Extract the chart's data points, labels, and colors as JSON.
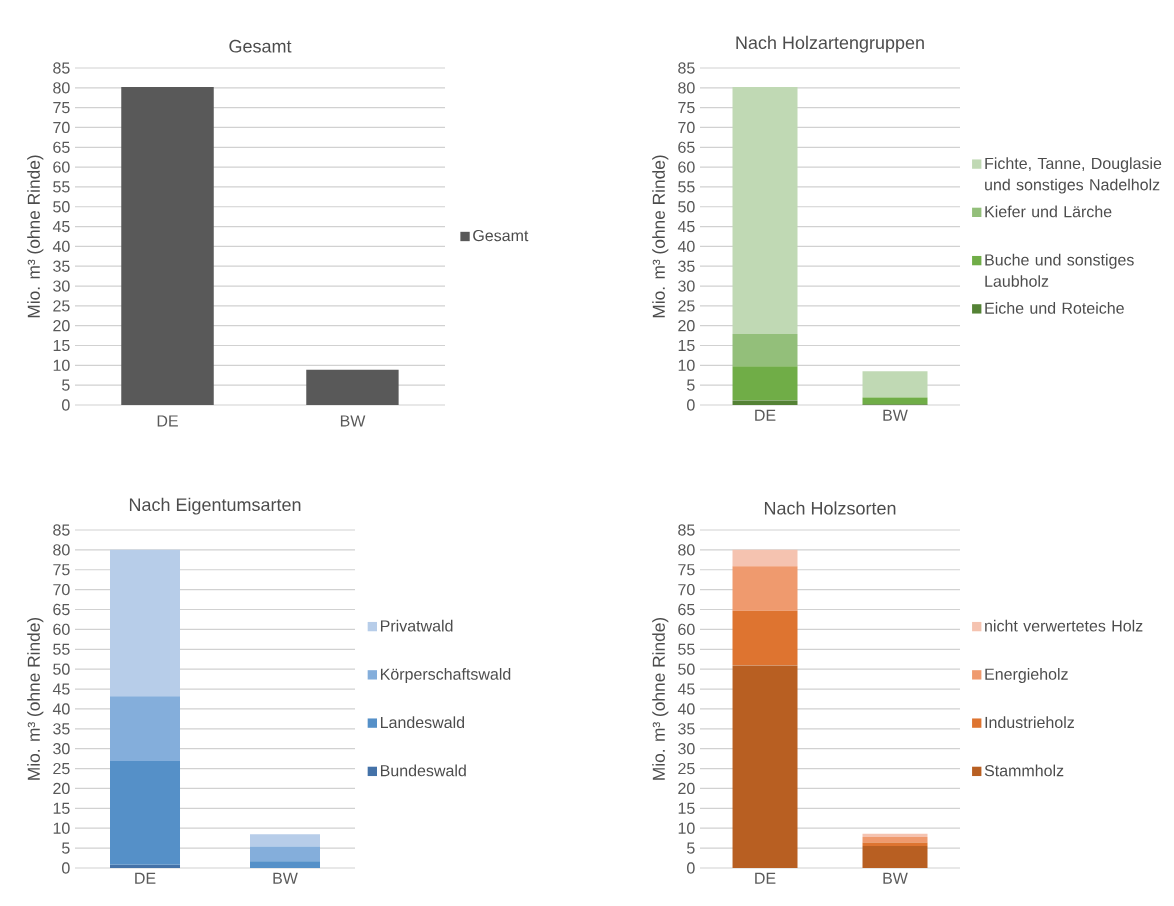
{
  "chart_data": [
    {
      "type": "bar",
      "title": "Gesamt",
      "ylabel": "Mio. m³ (ohne Rinde)",
      "categories": [
        "DE",
        "BW"
      ],
      "series": [
        {
          "name": "Gesamt",
          "color": "#595959",
          "values": [
            80.2,
            8.9
          ]
        }
      ],
      "ylim": [
        0,
        85
      ],
      "yticks": [
        0,
        5,
        10,
        15,
        20,
        25,
        30,
        35,
        40,
        45,
        50,
        55,
        60,
        65,
        70,
        75,
        80,
        85
      ],
      "grid": "y",
      "legend": "right"
    },
    {
      "type": "bar",
      "title": "Nach Holzartengruppen",
      "ylabel": "Mio. m³ (ohne Rinde)",
      "categories": [
        "DE",
        "BW"
      ],
      "stacked": true,
      "series": [
        {
          "name": "Eiche und Roteiche",
          "color": "#548235",
          "values": [
            1.2,
            0.2
          ]
        },
        {
          "name": "Buche und sonstiges Laubholz",
          "color": "#70ad47",
          "values": [
            8.6,
            1.7
          ]
        },
        {
          "name": "Kiefer und Lärche",
          "color": "#93bf7a",
          "values": [
            8.1,
            null
          ]
        },
        {
          "name": "Fichte, Tanne, Douglasie und sonstiges Nadelholz",
          "color": "#c0d9b4",
          "values": [
            62.3,
            6.6
          ]
        }
      ],
      "ylim": [
        0,
        85
      ],
      "yticks": [
        0,
        5,
        10,
        15,
        20,
        25,
        30,
        35,
        40,
        45,
        50,
        55,
        60,
        65,
        70,
        75,
        80,
        85
      ],
      "grid": "y",
      "legend": "right"
    },
    {
      "type": "bar",
      "title": "Nach Eigentumsarten",
      "ylabel": "Mio. m³ (ohne Rinde)",
      "categories": [
        "DE",
        "BW"
      ],
      "stacked": true,
      "series": [
        {
          "name": "Bundeswald",
          "color": "#4472a8",
          "values": [
            0.8,
            null
          ]
        },
        {
          "name": "Landeswald",
          "color": "#5590c8",
          "values": [
            26.1,
            1.7
          ]
        },
        {
          "name": "Körperschaftswald",
          "color": "#84aedb",
          "values": [
            16.3,
            3.7
          ]
        },
        {
          "name": "Privatwald",
          "color": "#b7cde9",
          "values": [
            36.8,
            3.1
          ]
        }
      ],
      "ylim": [
        0,
        85
      ],
      "yticks": [
        0,
        5,
        10,
        15,
        20,
        25,
        30,
        35,
        40,
        45,
        50,
        55,
        60,
        65,
        70,
        75,
        80,
        85
      ],
      "grid": "y",
      "legend": "right"
    },
    {
      "type": "bar",
      "title": "Nach Holzsorten",
      "ylabel": "Mio. m³ (ohne Rinde)",
      "categories": [
        "DE",
        "BW"
      ],
      "stacked": true,
      "series": [
        {
          "name": "Stammholz",
          "color": "#b85f22",
          "values": [
            51.0,
            5.5
          ]
        },
        {
          "name": "Industrieholz",
          "color": "#de7430",
          "values": [
            13.7,
            0.9
          ]
        },
        {
          "name": "Energieholz",
          "color": "#ef9a6e",
          "values": [
            11.2,
            1.4
          ]
        },
        {
          "name": "nicht verwertetes Holz",
          "color": "#f5c3b0",
          "values": [
            4.1,
            0.8
          ]
        }
      ],
      "ylim": [
        0,
        85
      ],
      "yticks": [
        0,
        5,
        10,
        15,
        20,
        25,
        30,
        35,
        40,
        45,
        50,
        55,
        60,
        65,
        70,
        75,
        80,
        85
      ],
      "grid": "y",
      "legend": "right"
    }
  ]
}
